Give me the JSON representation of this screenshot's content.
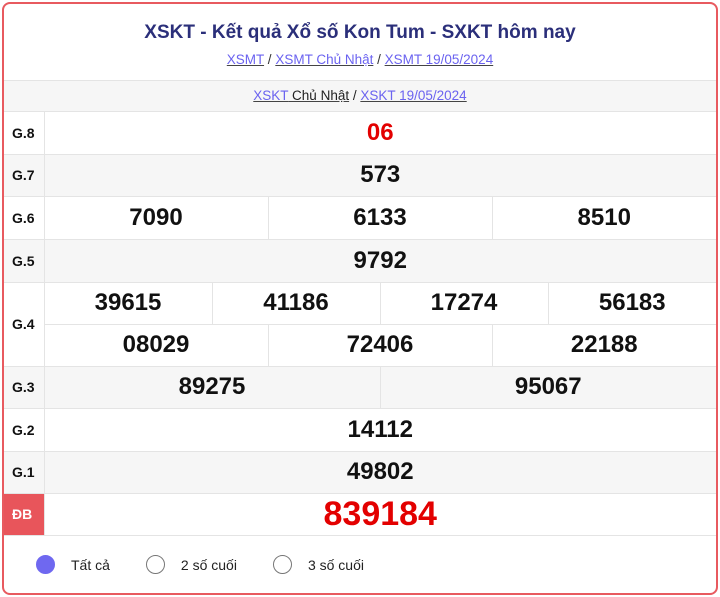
{
  "header": {
    "title": "XSKT - Kết quả Xổ số Kon Tum - SXKT hôm nay",
    "breadcrumb": [
      "XSMT",
      "XSMT Chủ Nhật",
      "XSMT 19/05/2024"
    ],
    "sub": {
      "link1": "XSKT",
      "text1": " Chủ Nhật",
      "link2": "XSKT 19/05/2024"
    }
  },
  "prizes": {
    "g8": {
      "label": "G.8",
      "values": [
        "06"
      ]
    },
    "g7": {
      "label": "G.7",
      "values": [
        "573"
      ]
    },
    "g6": {
      "label": "G.6",
      "values": [
        "7090",
        "6133",
        "8510"
      ]
    },
    "g5": {
      "label": "G.5",
      "values": [
        "9792"
      ]
    },
    "g4": {
      "label": "G.4",
      "values": [
        "39615",
        "41186",
        "17274",
        "56183",
        "08029",
        "72406",
        "22188"
      ]
    },
    "g3": {
      "label": "G.3",
      "values": [
        "89275",
        "95067"
      ]
    },
    "g2": {
      "label": "G.2",
      "values": [
        "14112"
      ]
    },
    "g1": {
      "label": "G.1",
      "values": [
        "49802"
      ]
    },
    "db": {
      "label": "ĐB",
      "values": [
        "839184"
      ]
    }
  },
  "filters": [
    {
      "label": "Tất cả",
      "selected": true
    },
    {
      "label": "2 số cuối",
      "selected": false
    },
    {
      "label": "3 số cuối",
      "selected": false
    }
  ],
  "colors": {
    "accent": "#6f68f0",
    "special": "#e30000",
    "border": "#e85a5f"
  }
}
